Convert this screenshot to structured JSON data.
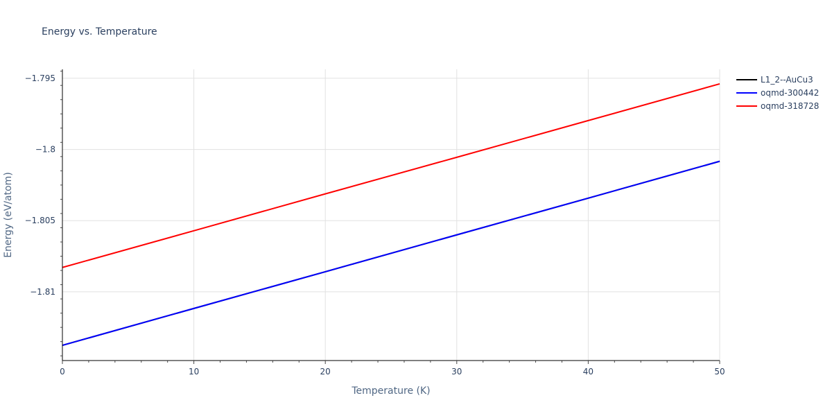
{
  "chart_data": {
    "type": "line",
    "title": "Energy vs. Temperature",
    "xlabel": "Temperature (K)",
    "ylabel": "Energy (eV/atom)",
    "xlim": [
      0,
      50
    ],
    "ylim": [
      -1.81483,
      -1.79437
    ],
    "x_ticks": [
      0,
      10,
      20,
      30,
      40,
      50
    ],
    "x_tick_labels": [
      "0",
      "10",
      "20",
      "30",
      "40",
      "50"
    ],
    "y_ticks": [
      -1.795,
      -1.8,
      -1.805,
      -1.81
    ],
    "y_tick_labels": [
      "−1.795",
      "−1.8",
      "−1.805",
      "−1.81"
    ],
    "grid": true,
    "legend_position": "right-top",
    "x": [
      0,
      10,
      20,
      30,
      40,
      50
    ],
    "series": [
      {
        "name": "L1_2--AuCu3",
        "color": "#000000",
        "values": [
          -1.81376,
          -1.81117,
          -1.80859,
          -1.806,
          -1.80342,
          -1.80083
        ]
      },
      {
        "name": "oqmd-300442",
        "color": "#0000ff",
        "values": [
          -1.81376,
          -1.81117,
          -1.80859,
          -1.806,
          -1.80342,
          -1.80083
        ]
      },
      {
        "name": "oqmd-318728",
        "color": "#ff0000",
        "values": [
          -1.80829,
          -1.80571,
          -1.80312,
          -1.80055,
          -1.79797,
          -1.79539
        ]
      }
    ]
  }
}
